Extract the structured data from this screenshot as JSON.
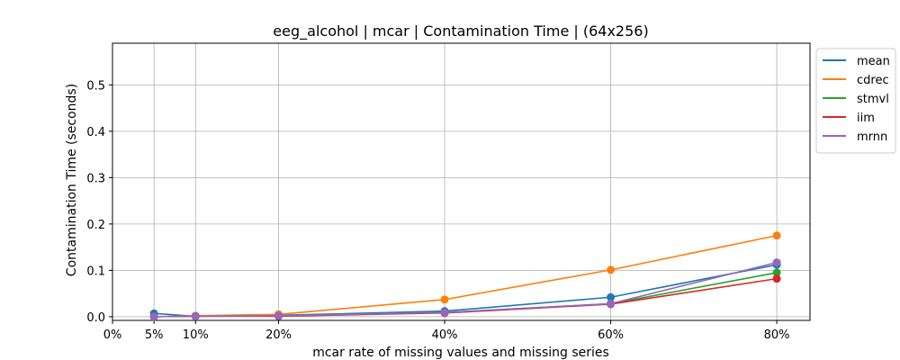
{
  "chart_data": {
    "type": "line",
    "title": "eeg_alcohol | mcar | Contamination Time | (64x256)",
    "xlabel": "mcar rate of missing values and missing series",
    "ylabel": "Contamination Time (seconds)",
    "x": [
      5,
      10,
      20,
      40,
      60,
      80
    ],
    "xticks": [
      0,
      5,
      10,
      20,
      40,
      60,
      80
    ],
    "xtick_labels": [
      "0%",
      "5%",
      "10%",
      "20%",
      "40%",
      "60%",
      "80%"
    ],
    "xlim": [
      0,
      84
    ],
    "yticks": [
      0.0,
      0.1,
      0.2,
      0.3,
      0.4,
      0.5
    ],
    "ytick_labels": [
      "0.0",
      "0.1",
      "0.2",
      "0.3",
      "0.4",
      "0.5"
    ],
    "ylim": [
      -0.008,
      0.59
    ],
    "grid": true,
    "legend_position": "outside-top-right",
    "series": [
      {
        "name": "mean",
        "color": "#1f77b4",
        "values": [
          0.007,
          0.001,
          0.003,
          0.012,
          0.042,
          0.112
        ]
      },
      {
        "name": "cdrec",
        "color": "#ff7f0e",
        "values": [
          0.0,
          0.002,
          0.005,
          0.037,
          0.101,
          0.175
        ]
      },
      {
        "name": "stmvl",
        "color": "#2ca02c",
        "values": [
          0.0,
          0.001,
          0.002,
          0.009,
          0.028,
          0.095
        ]
      },
      {
        "name": "iim",
        "color": "#d62728",
        "values": [
          0.0,
          0.001,
          0.001,
          0.008,
          0.027,
          0.082
        ]
      },
      {
        "name": "mrnn",
        "color": "#9467bd",
        "values": [
          0.0,
          0.001,
          0.002,
          0.009,
          0.028,
          0.117
        ]
      }
    ]
  }
}
